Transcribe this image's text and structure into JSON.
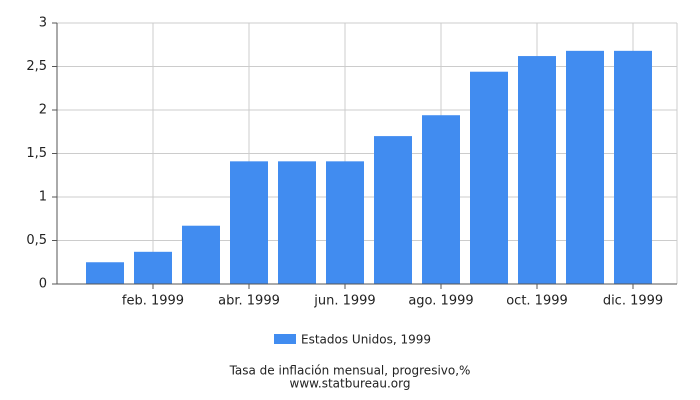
{
  "chart_data": {
    "type": "bar",
    "title": "Tasa de inflación mensual, progresivo,%",
    "subtitle": "www.statbureau.org",
    "categories": [
      null,
      "feb. 1999",
      null,
      "abr. 1999",
      null,
      "jun. 1999",
      null,
      "ago. 1999",
      null,
      "oct. 1999",
      null,
      "dic. 1999"
    ],
    "series": [
      {
        "name": "Estados Unidos, 1999",
        "color": "#418cf0",
        "values": [
          0.25,
          0.37,
          0.67,
          1.41,
          1.41,
          1.41,
          1.7,
          1.94,
          2.44,
          2.62,
          2.68,
          2.68
        ]
      }
    ],
    "ylim": [
      0,
      3
    ],
    "yticks": [
      0,
      {
        "value": 0.5,
        "label": "0,5"
      },
      1,
      {
        "value": 1.5,
        "label": "1,5"
      },
      2,
      {
        "value": 2.5,
        "label": "2,5"
      },
      3
    ],
    "grid": true
  }
}
